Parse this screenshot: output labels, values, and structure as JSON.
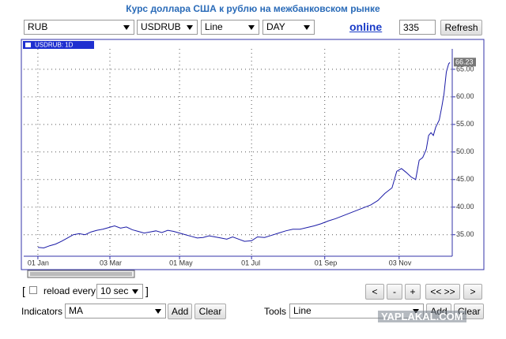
{
  "header": {
    "title": "Курс доллара США к рублю на межбанковском рынке"
  },
  "toolbar": {
    "currency": "RUB",
    "instrument": "USDRUB",
    "chart_style": "Line",
    "period": "DAY",
    "online": "online",
    "count": "335",
    "refresh": "Refresh"
  },
  "chart": {
    "type": "line",
    "tag": "USDRUB: 1D",
    "color": "#1a1aa6",
    "grid": true,
    "x": [
      0,
      5,
      10,
      15,
      20,
      25,
      30,
      35,
      40,
      45,
      50,
      55,
      60,
      65,
      70,
      75,
      80,
      85,
      90,
      95,
      100,
      105,
      110,
      115,
      120,
      125,
      130,
      135,
      140,
      145,
      150,
      155,
      160,
      165,
      170,
      175,
      181,
      186,
      192,
      198,
      204,
      210,
      216,
      222,
      228,
      234,
      240,
      246,
      252,
      258,
      264,
      270,
      276,
      282,
      288,
      294,
      300,
      304,
      308,
      312,
      316,
      320,
      323,
      326,
      329,
      331,
      333,
      335,
      337,
      340,
      342,
      344,
      346,
      348,
      349
    ],
    "values": [
      32.7,
      32.6,
      33.0,
      33.3,
      33.8,
      34.4,
      35.0,
      35.2,
      35.0,
      35.5,
      35.8,
      36.0,
      36.3,
      36.6,
      36.2,
      36.4,
      35.9,
      35.6,
      35.3,
      35.5,
      35.7,
      35.4,
      35.8,
      35.6,
      35.3,
      35.0,
      34.7,
      34.4,
      34.5,
      34.8,
      34.6,
      34.4,
      34.2,
      34.6,
      34.2,
      33.8,
      33.9,
      34.6,
      34.5,
      34.9,
      35.3,
      35.7,
      36.0,
      36.0,
      36.3,
      36.6,
      37.0,
      37.5,
      37.9,
      38.4,
      38.9,
      39.4,
      39.9,
      40.4,
      41.2,
      42.5,
      43.5,
      46.5,
      47.0,
      46.3,
      45.5,
      45.0,
      48.5,
      49.0,
      50.5,
      53.0,
      53.5,
      53.0,
      54.5,
      55.8,
      58.0,
      60.5,
      64.5,
      66.0,
      66.23
    ],
    "xlim": [
      -12,
      351
    ],
    "ylim": [
      31.1,
      68.7
    ],
    "xticks": [
      {
        "value": 0,
        "label": "01 Jan"
      },
      {
        "value": 61,
        "label": "03 Mar"
      },
      {
        "value": 120,
        "label": "01 May"
      },
      {
        "value": 181,
        "label": "01 Jul"
      },
      {
        "value": 243,
        "label": "01 Sep"
      },
      {
        "value": 306,
        "label": "03 Nov"
      }
    ],
    "yticks": [
      {
        "value": 35,
        "label": "35.00"
      },
      {
        "value": 40,
        "label": "40.00"
      },
      {
        "value": 45,
        "label": "45.00"
      },
      {
        "value": 50,
        "label": "50.00"
      },
      {
        "value": 55,
        "label": "55.00"
      },
      {
        "value": 60,
        "label": "60.00"
      },
      {
        "value": 65,
        "label": "65.00"
      }
    ]
  },
  "controls": {
    "open_bracket": "[",
    "reload": "reload every",
    "interval": "10 sec",
    "close_bracket": "]",
    "nav": [
      "<",
      "-",
      "+",
      "<< >>",
      ">"
    ]
  },
  "indicators": {
    "label": "Indicators",
    "value": "MA",
    "add": "Add",
    "clear": "Clear"
  },
  "tools": {
    "label": "Tools",
    "value": "Line",
    "add": "Add",
    "clear": "Clear"
  },
  "watermark": "YAPLAKAL.COM"
}
